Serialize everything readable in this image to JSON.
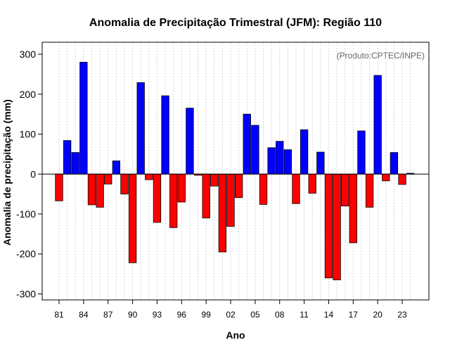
{
  "chart_data": {
    "type": "bar",
    "title": "Anomalia de Precipitação Trimestral (JFM): Região 110",
    "xlabel": "Ano",
    "ylabel": "Anomalia de precipitação (mm)",
    "credit": "(Produto:CPTEC/INPE)",
    "ylim": [
      -315,
      330
    ],
    "yticks": [
      -300,
      -200,
      -100,
      0,
      100,
      200,
      300
    ],
    "xtick_labels": [
      {
        "label": "81",
        "index": 0
      },
      {
        "label": "84",
        "index": 3
      },
      {
        "label": "87",
        "index": 6
      },
      {
        "label": "90",
        "index": 9
      },
      {
        "label": "93",
        "index": 12
      },
      {
        "label": "96",
        "index": 15
      },
      {
        "label": "99",
        "index": 18
      },
      {
        "label": "02",
        "index": 21
      },
      {
        "label": "05",
        "index": 24
      },
      {
        "label": "08",
        "index": 27
      },
      {
        "label": "11",
        "index": 30
      },
      {
        "label": "14",
        "index": 33
      },
      {
        "label": "17",
        "index": 36
      },
      {
        "label": "20",
        "index": 39
      },
      {
        "label": "23",
        "index": 42
      }
    ],
    "categories": [
      "1981",
      "1982",
      "1983",
      "1984",
      "1985",
      "1986",
      "1987",
      "1988",
      "1989",
      "1990",
      "1991",
      "1992",
      "1993",
      "1994",
      "1995",
      "1996",
      "1997",
      "1998",
      "1999",
      "2000",
      "2001",
      "2002",
      "2003",
      "2004",
      "2005",
      "2006",
      "2007",
      "2008",
      "2009",
      "2010",
      "2011",
      "2012",
      "2013",
      "2014",
      "2015",
      "2016",
      "2017",
      "2018",
      "2019",
      "2020",
      "2021",
      "2022",
      "2023",
      "2024"
    ],
    "values": [
      -67,
      84,
      54,
      280,
      -77,
      -83,
      -25,
      33,
      -50,
      -222,
      229,
      -14,
      -121,
      196,
      -134,
      -70,
      165,
      -3,
      -110,
      -30,
      -195,
      -131,
      -59,
      150,
      122,
      -76,
      66,
      82,
      61,
      -74,
      111,
      -48,
      55,
      -260,
      -265,
      -80,
      -172,
      108,
      -83,
      247,
      -17,
      54,
      -26,
      2
    ],
    "colors": {
      "positive": "#0000ff",
      "negative": "#ff0000",
      "grid": "#d3d3d3",
      "credit": "#666666"
    },
    "grid": true,
    "legend": "none"
  }
}
